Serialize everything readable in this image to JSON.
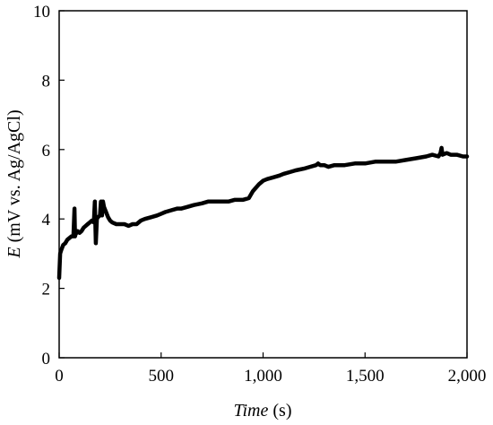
{
  "chart_data": {
    "type": "line",
    "xlabel": {
      "italic": "Time",
      "rest": " (s)"
    },
    "ylabel": {
      "italic": "E",
      "rest": " (mV vs. Ag/AgCl)"
    },
    "xlim": [
      0,
      2000
    ],
    "ylim": [
      0,
      10
    ],
    "x_ticks": [
      0,
      500,
      1000,
      1500,
      2000
    ],
    "x_tick_labels": [
      "0",
      "500",
      "1,000",
      "1,500",
      "2,000"
    ],
    "y_ticks": [
      0,
      2,
      4,
      6,
      8,
      10
    ],
    "y_tick_labels": [
      "0",
      "2",
      "4",
      "6",
      "8",
      "10"
    ],
    "grid": false,
    "line_color": "#000000",
    "series": [
      {
        "x": [
          0,
          5,
          10,
          20,
          30,
          40,
          50,
          60,
          70,
          75,
          78,
          80,
          85,
          90,
          100,
          110,
          120,
          130,
          140,
          150,
          160,
          170,
          175,
          180,
          185,
          190,
          200,
          205,
          210,
          215,
          220,
          230,
          240,
          250,
          260,
          280,
          300,
          320,
          340,
          360,
          380,
          400,
          420,
          450,
          480,
          500,
          520,
          550,
          580,
          600,
          630,
          660,
          700,
          730,
          760,
          800,
          830,
          860,
          900,
          930,
          950,
          980,
          1000,
          1020,
          1050,
          1080,
          1100,
          1130,
          1160,
          1200,
          1230,
          1260,
          1270,
          1280,
          1300,
          1320,
          1350,
          1400,
          1450,
          1500,
          1550,
          1600,
          1650,
          1700,
          1750,
          1800,
          1830,
          1860,
          1870,
          1875,
          1880,
          1900,
          1920,
          1950,
          1980,
          2000
        ],
        "y": [
          2.3,
          3.0,
          3.1,
          3.25,
          3.3,
          3.4,
          3.45,
          3.5,
          3.5,
          4.3,
          3.5,
          3.55,
          3.6,
          3.65,
          3.6,
          3.65,
          3.75,
          3.8,
          3.85,
          3.9,
          3.95,
          3.9,
          4.5,
          3.3,
          4.0,
          4.05,
          4.1,
          4.5,
          4.1,
          4.5,
          4.35,
          4.2,
          4.05,
          3.95,
          3.9,
          3.85,
          3.85,
          3.85,
          3.8,
          3.85,
          3.85,
          3.95,
          4.0,
          4.05,
          4.1,
          4.15,
          4.2,
          4.25,
          4.3,
          4.3,
          4.35,
          4.4,
          4.45,
          4.5,
          4.5,
          4.5,
          4.5,
          4.55,
          4.55,
          4.6,
          4.8,
          5.0,
          5.1,
          5.15,
          5.2,
          5.25,
          5.3,
          5.35,
          5.4,
          5.45,
          5.5,
          5.55,
          5.6,
          5.55,
          5.55,
          5.5,
          5.55,
          5.55,
          5.6,
          5.6,
          5.65,
          5.65,
          5.65,
          5.7,
          5.75,
          5.8,
          5.85,
          5.8,
          5.9,
          6.05,
          5.85,
          5.9,
          5.85,
          5.85,
          5.8,
          5.8
        ]
      }
    ]
  }
}
